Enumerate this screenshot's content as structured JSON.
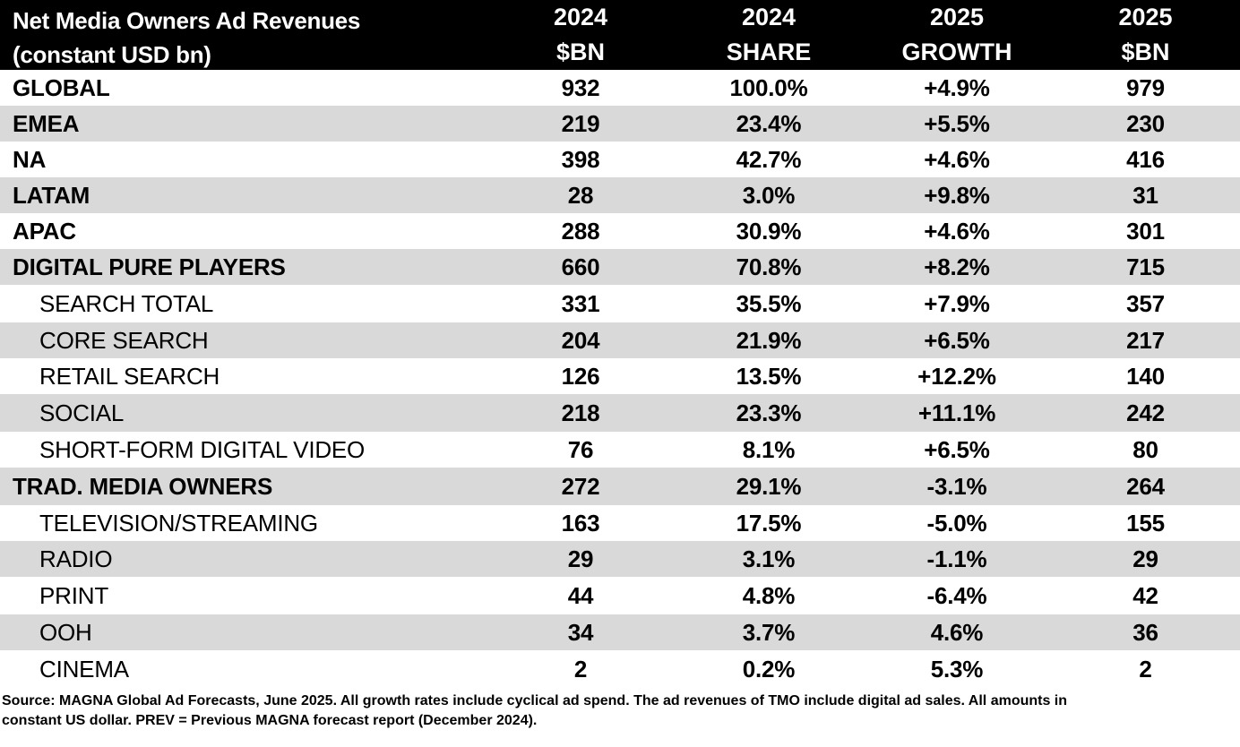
{
  "colors": {
    "header_bg": "#000000",
    "header_text": "#ffffff",
    "shade": "#d9d9d9"
  },
  "header": {
    "title_line1": "Net Media Owners Ad Revenues",
    "title_line2": "(constant USD bn)",
    "columns": [
      {
        "line1": "2024",
        "line2": "$BN"
      },
      {
        "line1": "2024",
        "line2": "SHARE"
      },
      {
        "line1": "2025",
        "line2": "GROWTH"
      },
      {
        "line1": "2025",
        "line2": "$BN"
      }
    ]
  },
  "chart_data": {
    "type": "table",
    "title": "Net Media Owners Ad Revenues (constant USD bn)",
    "columns": [
      "2024 $BN",
      "2024 SHARE",
      "2025 GROWTH",
      "2025 $BN"
    ],
    "rows": [
      {
        "label": "GLOBAL",
        "indent": false,
        "v2024": "932",
        "share": "100.0%",
        "growth": "+4.9%",
        "v2025": "979"
      },
      {
        "label": "EMEA",
        "indent": false,
        "v2024": "219",
        "share": "23.4%",
        "growth": "+5.5%",
        "v2025": "230"
      },
      {
        "label": "NA",
        "indent": false,
        "v2024": "398",
        "share": "42.7%",
        "growth": "+4.6%",
        "v2025": "416"
      },
      {
        "label": "LATAM",
        "indent": false,
        "v2024": "28",
        "share": "3.0%",
        "growth": "+9.8%",
        "v2025": "31"
      },
      {
        "label": "APAC",
        "indent": false,
        "v2024": "288",
        "share": "30.9%",
        "growth": "+4.6%",
        "v2025": "301"
      },
      {
        "label": "DIGITAL PURE PLAYERS",
        "indent": false,
        "v2024": "660",
        "share": "70.8%",
        "growth": "+8.2%",
        "v2025": "715"
      },
      {
        "label": "SEARCH TOTAL",
        "indent": true,
        "v2024": "331",
        "share": "35.5%",
        "growth": "+7.9%",
        "v2025": "357"
      },
      {
        "label": "CORE SEARCH",
        "indent": true,
        "v2024": "204",
        "share": "21.9%",
        "growth": "+6.5%",
        "v2025": "217"
      },
      {
        "label": "RETAIL SEARCH",
        "indent": true,
        "v2024": "126",
        "share": "13.5%",
        "growth": "+12.2%",
        "v2025": "140"
      },
      {
        "label": "SOCIAL",
        "indent": true,
        "v2024": "218",
        "share": "23.3%",
        "growth": "+11.1%",
        "v2025": "242"
      },
      {
        "label": "SHORT-FORM DIGITAL VIDEO",
        "indent": true,
        "v2024": "76",
        "share": "8.1%",
        "growth": "+6.5%",
        "v2025": "80"
      },
      {
        "label": "TRAD. MEDIA OWNERS",
        "indent": false,
        "v2024": "272",
        "share": "29.1%",
        "growth": "-3.1%",
        "v2025": "264"
      },
      {
        "label": "TELEVISION/STREAMING",
        "indent": true,
        "v2024": "163",
        "share": "17.5%",
        "growth": "-5.0%",
        "v2025": "155"
      },
      {
        "label": "RADIO",
        "indent": true,
        "v2024": "29",
        "share": "3.1%",
        "growth": "-1.1%",
        "v2025": "29"
      },
      {
        "label": "PRINT",
        "indent": true,
        "v2024": "44",
        "share": "4.8%",
        "growth": "-6.4%",
        "v2025": "42"
      },
      {
        "label": "OOH",
        "indent": true,
        "v2024": "34",
        "share": "3.7%",
        "growth": "4.6%",
        "v2025": "36"
      },
      {
        "label": "CINEMA",
        "indent": true,
        "v2024": "2",
        "share": "0.2%",
        "growth": "5.3%",
        "v2025": "2"
      }
    ]
  },
  "source": {
    "line1": "Source: MAGNA Global Ad Forecasts, June 2025. All growth rates include cyclical ad spend. The ad revenues of TMO include digital ad sales. All amounts in",
    "line2": "constant US dollar. PREV = Previous MAGNA forecast report (December 2024)."
  }
}
